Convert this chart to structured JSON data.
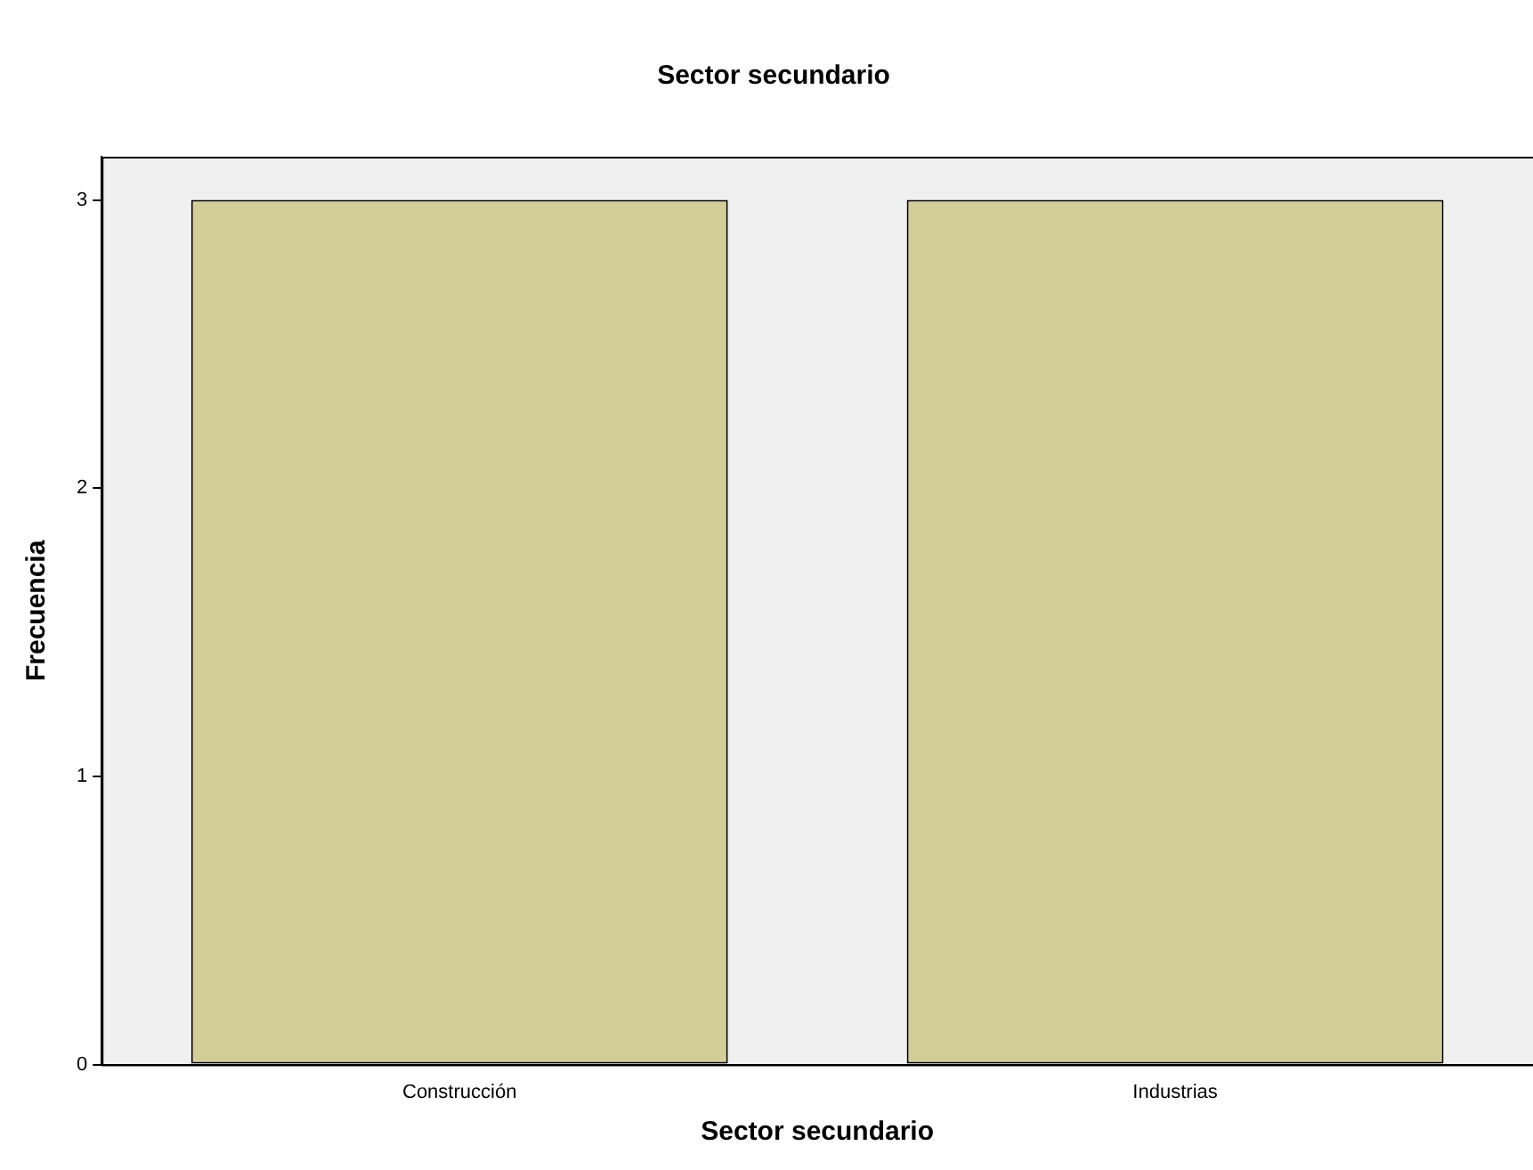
{
  "chart_data": {
    "type": "bar",
    "title": "Sector secundario",
    "xlabel": "Sector secundario",
    "ylabel": "Frecuencia",
    "categories": [
      "Construcción",
      "Industrias"
    ],
    "values": [
      3,
      3
    ],
    "color": "#d3ce97",
    "ylim": [
      0,
      3.15
    ],
    "yticks": [
      0,
      1,
      2,
      3
    ],
    "grid": false,
    "legend": false
  }
}
